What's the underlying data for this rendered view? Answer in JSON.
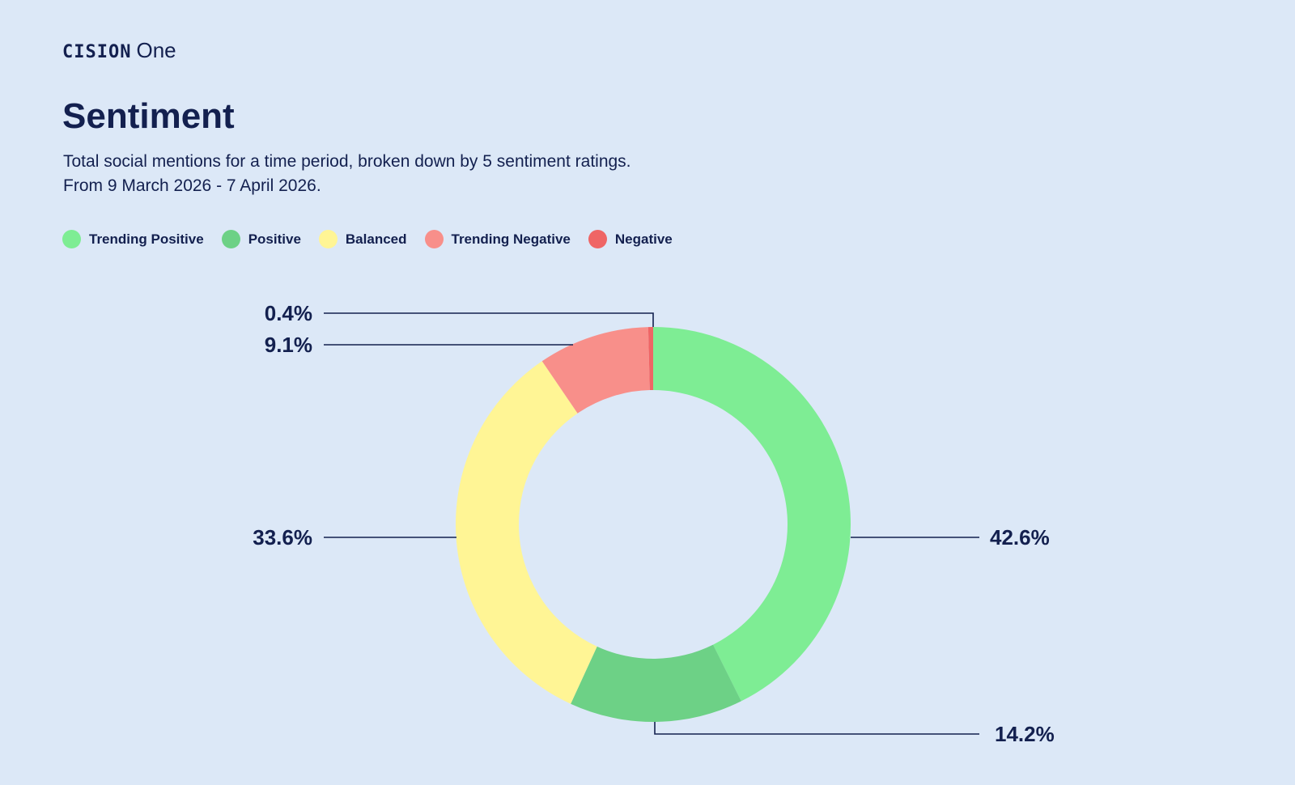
{
  "header": {
    "brand": "CISION",
    "product": "One"
  },
  "chart_data": {
    "type": "pie",
    "donut": true,
    "title": "Sentiment",
    "subtitle_lines": [
      "Total social mentions for a time period, broken down by 5 sentiment ratings.",
      "From 9 March 2026 - 7 April 2026."
    ],
    "legend_placement": "top-left",
    "slices": [
      {
        "name": "Trending Positive",
        "value": 42.6,
        "label": "42.6%",
        "color": "#7eed94"
      },
      {
        "name": "Positive",
        "value": 14.2,
        "label": "14.2%",
        "color": "#6dd186"
      },
      {
        "name": "Balanced",
        "value": 33.6,
        "label": "33.6%",
        "color": "#fff595"
      },
      {
        "name": "Trending Negative",
        "value": 9.1,
        "label": "9.1%",
        "color": "#f88f8a"
      },
      {
        "name": "Negative",
        "value": 0.4,
        "label": "0.4%",
        "color": "#ef6565"
      }
    ]
  }
}
